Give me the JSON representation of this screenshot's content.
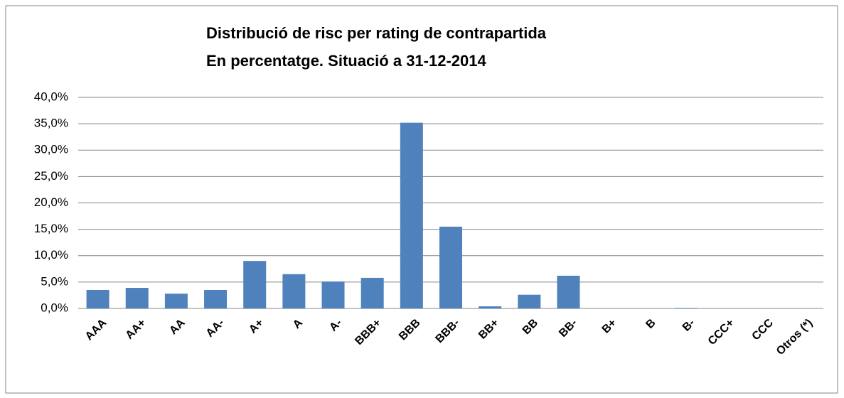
{
  "chart_data": {
    "type": "bar",
    "title": "Distribució de risc per rating de contrapartida",
    "subtitle": "En percentatge. Situació a 31-12-2014",
    "categories": [
      "AAA",
      "AA+",
      "AA",
      "AA-",
      "A+",
      "A",
      "A-",
      "BBB+",
      "BBB",
      "BBB-",
      "BB+",
      "BB",
      "BB-",
      "B+",
      "B",
      "B-",
      "CCC+",
      "CCC",
      "Otros (*)"
    ],
    "values": [
      3.5,
      3.9,
      2.8,
      3.5,
      9.0,
      6.5,
      5.1,
      5.8,
      35.2,
      15.5,
      0.4,
      2.6,
      6.2,
      0,
      0,
      0.1,
      0,
      0,
      0
    ],
    "color": "#4f81bd",
    "ylim": [
      0,
      40
    ],
    "yticks": [
      {
        "value": 0,
        "label": "0,0%"
      },
      {
        "value": 5,
        "label": "5,0%"
      },
      {
        "value": 10,
        "label": "10,0%"
      },
      {
        "value": 15,
        "label": "15,0%"
      },
      {
        "value": 20,
        "label": "20,0%"
      },
      {
        "value": 25,
        "label": "25,0%"
      },
      {
        "value": 30,
        "label": "30,0%"
      },
      {
        "value": 35,
        "label": "35,0%"
      },
      {
        "value": 40,
        "label": "40,0%"
      }
    ],
    "grid": true
  }
}
